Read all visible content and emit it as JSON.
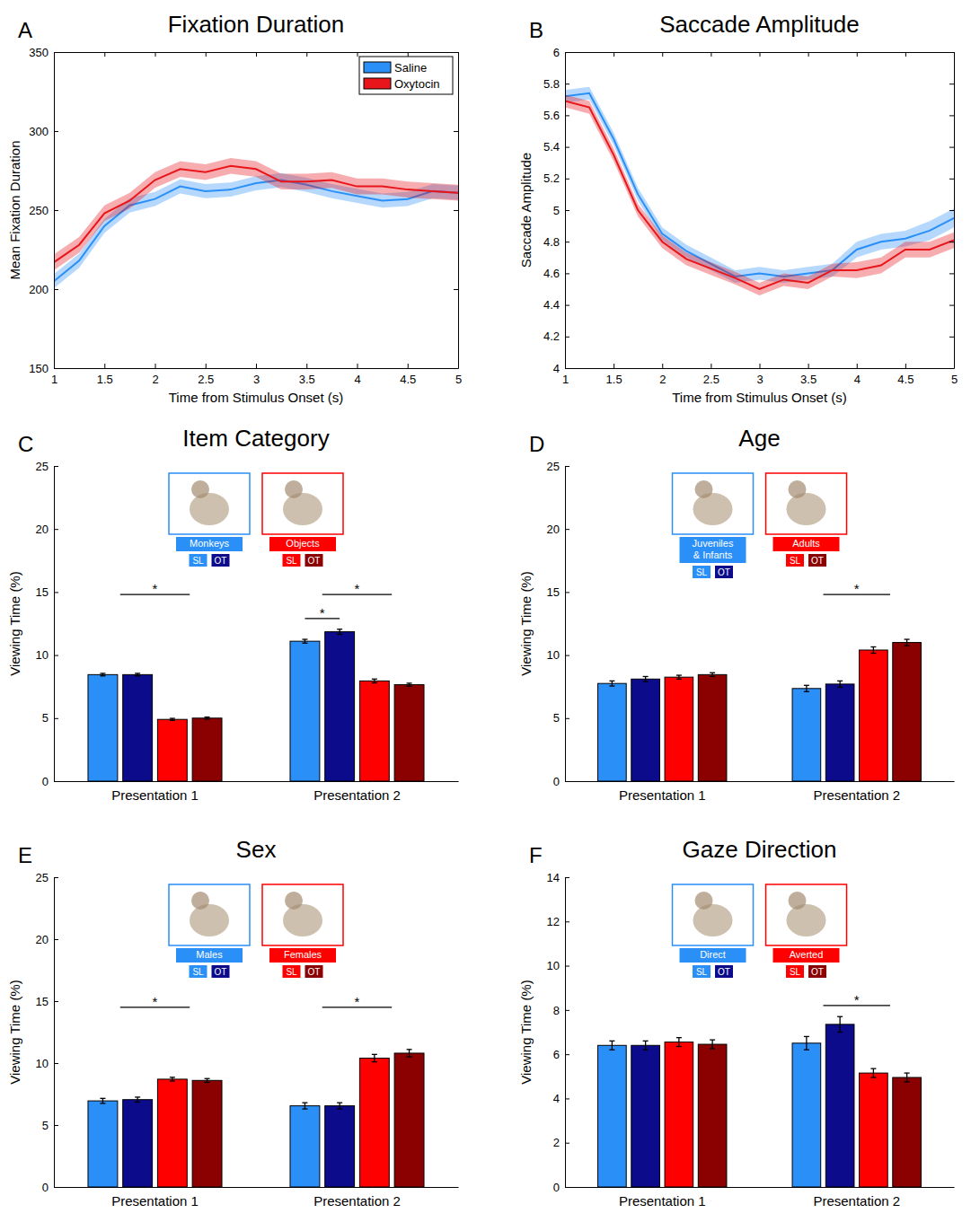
{
  "chart_data": [
    {
      "type": "line",
      "panel": "A",
      "title": "Fixation Duration",
      "x_label": "Time from Stimulus Onset (s)",
      "y_label": "Mean Fixation Duration",
      "x": [
        1,
        1.25,
        1.5,
        1.75,
        2,
        2.25,
        2.5,
        2.75,
        3,
        3.25,
        3.5,
        3.75,
        4,
        4.25,
        4.5,
        4.75,
        5
      ],
      "series": [
        {
          "name": "Saline",
          "color": "#2a8ff7",
          "values": [
            205,
            218,
            240,
            253,
            257,
            265,
            262,
            263,
            267,
            269,
            266,
            262,
            259,
            256,
            257,
            262,
            261
          ],
          "errors": [
            4.5,
            4.5,
            4.5,
            4.5,
            4.5,
            4.5,
            4.5,
            4.5,
            4.5,
            4.5,
            4.5,
            4.5,
            4.5,
            4.5,
            4.5,
            4.5,
            4.5
          ]
        },
        {
          "name": "Oxytocin",
          "color": "#e8151b",
          "values": [
            217,
            228,
            248,
            256,
            269,
            276,
            274,
            278,
            276,
            268,
            268,
            269,
            265,
            265,
            263,
            262,
            261
          ],
          "errors": [
            5,
            5,
            5,
            5,
            5,
            5,
            5,
            5,
            5,
            5,
            5,
            5,
            5,
            5,
            5,
            5,
            5
          ]
        }
      ],
      "xlim": [
        1,
        5
      ],
      "xticks": [
        1,
        1.5,
        2,
        2.5,
        3,
        3.5,
        4,
        4.5,
        5
      ],
      "ylim": [
        150,
        350
      ],
      "yticks": [
        150,
        200,
        250,
        300,
        350
      ],
      "legend": "top-right"
    },
    {
      "type": "line",
      "panel": "B",
      "title": "Saccade Amplitude",
      "x_label": "Time from Stimulus Onset (s)",
      "y_label": "Saccade Amplitude",
      "x": [
        1,
        1.25,
        1.5,
        1.75,
        2,
        2.25,
        2.5,
        2.75,
        3,
        3.25,
        3.5,
        3.75,
        4,
        4.25,
        4.5,
        4.75,
        5
      ],
      "series": [
        {
          "color": "#2a8ff7",
          "values": [
            5.72,
            5.74,
            5.45,
            5.1,
            4.85,
            4.74,
            4.66,
            4.58,
            4.6,
            4.58,
            4.6,
            4.62,
            4.75,
            4.8,
            4.82,
            4.87,
            4.95
          ],
          "errors": [
            0.04,
            0.04,
            0.04,
            0.04,
            0.04,
            0.04,
            0.04,
            0.04,
            0.04,
            0.04,
            0.04,
            0.04,
            0.05,
            0.05,
            0.05,
            0.06,
            0.06
          ]
        },
        {
          "color": "#e8151b",
          "values": [
            5.69,
            5.65,
            5.35,
            5.0,
            4.8,
            4.69,
            4.63,
            4.57,
            4.5,
            4.56,
            4.54,
            4.62,
            4.62,
            4.65,
            4.75,
            4.75,
            4.81
          ],
          "errors": [
            0.04,
            0.04,
            0.04,
            0.04,
            0.04,
            0.04,
            0.04,
            0.04,
            0.04,
            0.04,
            0.04,
            0.04,
            0.05,
            0.05,
            0.05,
            0.05,
            0.05
          ]
        }
      ],
      "xlim": [
        1,
        5
      ],
      "xticks": [
        1,
        1.5,
        2,
        2.5,
        3,
        3.5,
        4,
        4.5,
        5
      ],
      "ylim": [
        4,
        6
      ],
      "yticks": [
        4,
        4.2,
        4.4,
        4.6,
        4.8,
        5,
        5.2,
        5.4,
        5.6,
        5.8,
        6
      ]
    },
    {
      "type": "bar",
      "panel": "C",
      "title": "Item Category",
      "y_label": "Viewing Time (%)",
      "categories": [
        "Presentation 1",
        "Presentation 2"
      ],
      "series": [
        {
          "name": "SL",
          "group": "Monkeys",
          "color": "#2a8ff7",
          "values": [
            8.45,
            11.1
          ],
          "errors": [
            0.1,
            0.15
          ]
        },
        {
          "name": "OT",
          "group": "Monkeys",
          "color": "#0b0b8c",
          "values": [
            8.45,
            11.85
          ],
          "errors": [
            0.1,
            0.2
          ]
        },
        {
          "name": "SL",
          "group": "Objects",
          "color": "#ff0000",
          "values": [
            4.9,
            7.95
          ],
          "errors": [
            0.08,
            0.15
          ]
        },
        {
          "name": "OT",
          "group": "Objects",
          "color": "#8b0000",
          "values": [
            5.0,
            7.65
          ],
          "errors": [
            0.08,
            0.12
          ]
        }
      ],
      "ylim": [
        0,
        25
      ],
      "yticks": [
        0,
        5,
        10,
        15,
        20,
        25
      ],
      "legend": "top",
      "annotations": [
        {
          "text": "*",
          "category": "Presentation 1",
          "span": [
            0.5,
            2.5
          ],
          "y": 14.8
        },
        {
          "text": "*",
          "category": "Presentation 2",
          "span": [
            0,
            1
          ],
          "y": 12.9
        },
        {
          "text": "*",
          "category": "Presentation 2",
          "span": [
            0.5,
            2.5
          ],
          "y": 14.8
        }
      ]
    },
    {
      "type": "bar",
      "panel": "D",
      "title": "Age",
      "y_label": "Viewing Time (%)",
      "categories": [
        "Presentation 1",
        "Presentation 2"
      ],
      "series": [
        {
          "name": "SL",
          "group": "Juveniles & Infants",
          "color": "#2a8ff7",
          "values": [
            7.75,
            7.35
          ],
          "errors": [
            0.2,
            0.25
          ]
        },
        {
          "name": "OT",
          "group": "Juveniles & Infants",
          "color": "#0b0b8c",
          "values": [
            8.1,
            7.7
          ],
          "errors": [
            0.2,
            0.25
          ]
        },
        {
          "name": "SL",
          "group": "Adults",
          "color": "#ff0000",
          "values": [
            8.25,
            10.4
          ],
          "errors": [
            0.15,
            0.25
          ]
        },
        {
          "name": "OT",
          "group": "Adults",
          "color": "#8b0000",
          "values": [
            8.45,
            11.0
          ],
          "errors": [
            0.15,
            0.25
          ]
        }
      ],
      "ylim": [
        0,
        25
      ],
      "yticks": [
        0,
        5,
        10,
        15,
        20,
        25
      ],
      "legend": "top",
      "annotations": [
        {
          "text": "*",
          "category": "Presentation 2",
          "span": [
            0.5,
            2.5
          ],
          "y": 14.8
        }
      ]
    },
    {
      "type": "bar",
      "panel": "E",
      "title": "Sex",
      "y_label": "Viewing Time (%)",
      "categories": [
        "Presentation 1",
        "Presentation 2"
      ],
      "series": [
        {
          "name": "SL",
          "group": "Males",
          "color": "#2a8ff7",
          "values": [
            6.95,
            6.55
          ],
          "errors": [
            0.2,
            0.25
          ]
        },
        {
          "name": "OT",
          "group": "Males",
          "color": "#0b0b8c",
          "values": [
            7.05,
            6.55
          ],
          "errors": [
            0.2,
            0.25
          ]
        },
        {
          "name": "SL",
          "group": "Females",
          "color": "#ff0000",
          "values": [
            8.7,
            10.4
          ],
          "errors": [
            0.15,
            0.3
          ]
        },
        {
          "name": "OT",
          "group": "Females",
          "color": "#8b0000",
          "values": [
            8.6,
            10.8
          ],
          "errors": [
            0.15,
            0.3
          ]
        }
      ],
      "ylim": [
        0,
        25
      ],
      "yticks": [
        0,
        5,
        10,
        15,
        20,
        25
      ],
      "legend": "top",
      "annotations": [
        {
          "text": "*",
          "category": "Presentation 1",
          "span": [
            0.5,
            2.5
          ],
          "y": 14.5
        },
        {
          "text": "*",
          "category": "Presentation 2",
          "span": [
            0.5,
            2.5
          ],
          "y": 14.5
        }
      ]
    },
    {
      "type": "bar",
      "panel": "F",
      "title": "Gaze Direction",
      "y_label": "Viewing Time (%)",
      "categories": [
        "Presentation 1",
        "Presentation 2"
      ],
      "series": [
        {
          "name": "SL",
          "group": "Direct",
          "color": "#2a8ff7",
          "values": [
            6.4,
            6.5
          ],
          "errors": [
            0.2,
            0.3
          ]
        },
        {
          "name": "OT",
          "group": "Direct",
          "color": "#0b0b8c",
          "values": [
            6.4,
            7.35
          ],
          "errors": [
            0.2,
            0.35
          ]
        },
        {
          "name": "SL",
          "group": "Averted",
          "color": "#ff0000",
          "values": [
            6.55,
            5.15
          ],
          "errors": [
            0.2,
            0.2
          ]
        },
        {
          "name": "OT",
          "group": "Averted",
          "color": "#8b0000",
          "values": [
            6.45,
            4.95
          ],
          "errors": [
            0.2,
            0.2
          ]
        }
      ],
      "ylim": [
        0,
        14
      ],
      "yticks": [
        0,
        2,
        4,
        6,
        8,
        10,
        12,
        14
      ],
      "legend": "top",
      "annotations": [
        {
          "text": "*",
          "category": "Presentation 2",
          "span": [
            0.5,
            2.5
          ],
          "y": 8.2
        }
      ]
    }
  ]
}
